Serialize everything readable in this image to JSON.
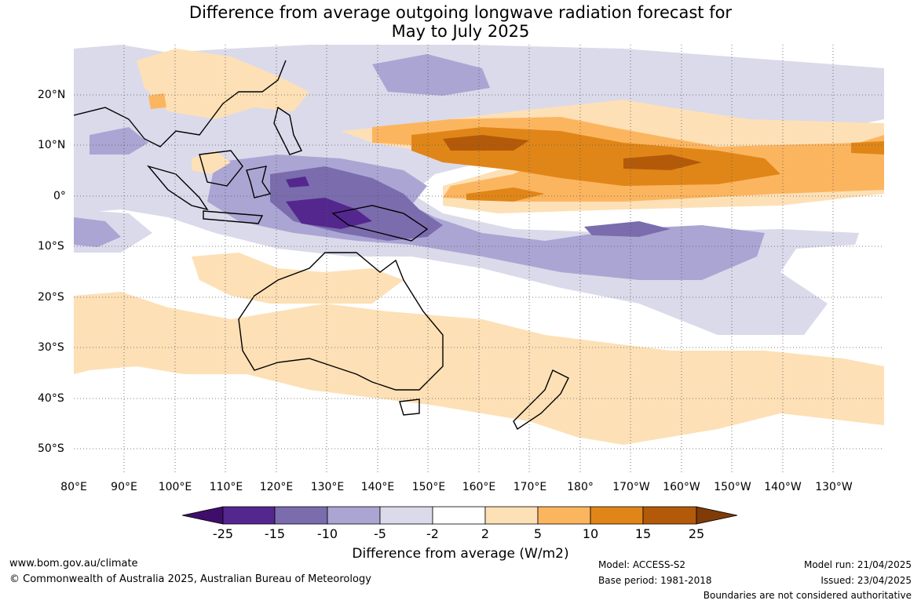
{
  "title": {
    "line1": "Difference from average outgoing longwave radiation forecast for",
    "line2": "May to July 2025"
  },
  "map": {
    "x_axis_labels": [
      "80°E",
      "90°E",
      "100°E",
      "110°E",
      "120°E",
      "130°E",
      "140°E",
      "150°E",
      "160°E",
      "170°E",
      "180°",
      "170°W",
      "160°W",
      "150°W",
      "140°W",
      "130°W"
    ],
    "y_axis_labels": [
      "20°N",
      "10°N",
      "0°",
      "10°S",
      "20°S",
      "30°S",
      "40°S",
      "50°S"
    ],
    "extent": {
      "lon": [
        80,
        240
      ],
      "lat": [
        -55,
        30
      ]
    }
  },
  "colorbar": {
    "label": "Difference from average (W/m2)",
    "ticks": [
      "-25",
      "-15",
      "-10",
      "-5",
      "-2",
      "2",
      "5",
      "10",
      "15",
      "25"
    ],
    "colors": [
      "#3f0e6b",
      "#54278f",
      "#7b6cae",
      "#aba5d3",
      "#dadaeb",
      "#ffffff",
      "#fde0b6",
      "#fcb55f",
      "#e08618",
      "#b35a0a",
      "#7f3b08"
    ]
  },
  "footer": {
    "website": "www.bom.gov.au/climate",
    "copyright": "© Commonwealth of Australia 2025, Australian Bureau of Meteorology",
    "model": "Model: ACCESS-S2",
    "base_period": "Base period: 1981-2018",
    "model_run": "Model run: 21/04/2025",
    "issued": "Issued: 23/04/2025",
    "disclaimer": "Boundaries are not considered authoritative"
  }
}
